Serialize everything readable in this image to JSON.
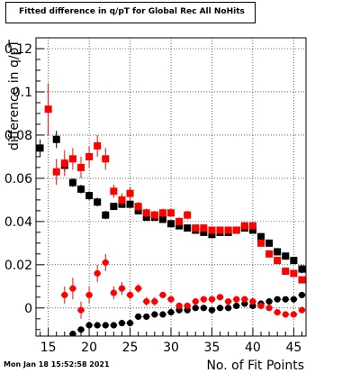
{
  "date_stamp": "Mon Jan 18 15:52:58 2021",
  "chart_data": {
    "type": "scatter",
    "title": "Fitted difference in q/pT for Global Rec All NoHits",
    "xlabel": "No. of Fit Points",
    "ylabel": "difference in q/pT",
    "xlim": [
      13.5,
      46.5
    ],
    "ylim": [
      -0.013,
      0.125
    ],
    "xticks": [
      15,
      20,
      25,
      30,
      35,
      40,
      45
    ],
    "yticks": [
      0,
      0.02,
      0.04,
      0.06,
      0.08,
      0.1,
      0.12
    ],
    "ytick_labels": [
      "0",
      "0.02",
      "0.04",
      "0.06",
      "0.08",
      "0.1",
      "0.12"
    ],
    "grid": true,
    "series": [
      {
        "color": "#000000",
        "marker": "square",
        "x": [
          14,
          16,
          17,
          18,
          19,
          20,
          21,
          22,
          23,
          24,
          25,
          26,
          27,
          28,
          29,
          30,
          31,
          32,
          33,
          34,
          35,
          36,
          37,
          38,
          39,
          40,
          41,
          42,
          43,
          44,
          45,
          46
        ],
        "y": [
          0.074,
          0.078,
          0.066,
          0.058,
          0.055,
          0.052,
          0.049,
          0.043,
          0.047,
          0.048,
          0.048,
          0.045,
          0.042,
          0.042,
          0.041,
          0.039,
          0.038,
          0.037,
          0.036,
          0.035,
          0.034,
          0.035,
          0.035,
          0.036,
          0.037,
          0.036,
          0.033,
          0.03,
          0.026,
          0.024,
          0.022,
          0.018
        ],
        "yerr": [
          0.004,
          0.004,
          0.003,
          0.002,
          0.002,
          0.002,
          0.002,
          0.002,
          0.001,
          0.001,
          0.001,
          0.001,
          0.001,
          0.001,
          0.001,
          0.001,
          0.001,
          0.001,
          0.001,
          0.001,
          0.001,
          0.001,
          0.001,
          0.001,
          0.001,
          0.001,
          0.001,
          0.001,
          0.001,
          0.001,
          0.001,
          0.002
        ]
      },
      {
        "color": "#ff0000",
        "marker": "square",
        "x": [
          15,
          16,
          17,
          18,
          19,
          20,
          21,
          22,
          23,
          24,
          25,
          26,
          27,
          28,
          29,
          30,
          31,
          32,
          33,
          34,
          35,
          36,
          37,
          38,
          39,
          40,
          41,
          42,
          43,
          44,
          45,
          46
        ],
        "y": [
          0.092,
          0.063,
          0.067,
          0.069,
          0.065,
          0.07,
          0.075,
          0.069,
          0.054,
          0.05,
          0.053,
          0.047,
          0.044,
          0.043,
          0.044,
          0.044,
          0.04,
          0.043,
          0.037,
          0.037,
          0.036,
          0.036,
          0.036,
          0.036,
          0.038,
          0.038,
          0.03,
          0.025,
          0.022,
          0.017,
          0.016,
          0.013
        ],
        "yerr": [
          0.012,
          0.006,
          0.006,
          0.005,
          0.005,
          0.005,
          0.005,
          0.005,
          0.003,
          0.003,
          0.003,
          0.002,
          0.002,
          0.002,
          0.002,
          0.002,
          0.002,
          0.002,
          0.001,
          0.001,
          0.001,
          0.001,
          0.001,
          0.001,
          0.001,
          0.001,
          0.001,
          0.001,
          0.001,
          0.001,
          0.001,
          0.001
        ]
      },
      {
        "color": "#000000",
        "marker": "circle",
        "x": [
          18,
          19,
          20,
          21,
          22,
          23,
          24,
          25,
          26,
          27,
          28,
          29,
          30,
          31,
          32,
          33,
          34,
          35,
          36,
          37,
          38,
          39,
          40,
          41,
          42,
          43,
          44,
          45,
          46
        ],
        "y": [
          -0.012,
          -0.01,
          -0.008,
          -0.008,
          -0.008,
          -0.008,
          -0.007,
          -0.007,
          -0.004,
          -0.004,
          -0.003,
          -0.003,
          -0.002,
          -0.001,
          -0.001,
          0.0,
          0.0,
          -0.001,
          0.0,
          0.0,
          0.001,
          0.002,
          0.001,
          0.002,
          0.003,
          0.004,
          0.004,
          0.004,
          0.006
        ],
        "yerr": [
          0.001,
          0.001,
          0.001,
          0.001,
          0.001,
          0.001,
          0.001,
          0.001,
          0.001,
          0.001,
          0.001,
          0.001,
          0.001,
          0.001,
          0.001,
          0.001,
          0.001,
          0.001,
          0.001,
          0.001,
          0.001,
          0.001,
          0.001,
          0.001,
          0.001,
          0.001,
          0.001,
          0.001,
          0.001
        ]
      },
      {
        "color": "#ff0000",
        "marker": "circle",
        "x": [
          17,
          18,
          19,
          20,
          21,
          22,
          23,
          24,
          25,
          26,
          27,
          28,
          29,
          30,
          31,
          32,
          33,
          34,
          35,
          36,
          37,
          38,
          39,
          40,
          41,
          42,
          43,
          44,
          45,
          46
        ],
        "y": [
          0.006,
          0.009,
          -0.001,
          0.006,
          0.016,
          0.021,
          0.007,
          0.009,
          0.006,
          0.009,
          0.003,
          0.003,
          0.006,
          0.004,
          0.001,
          0.001,
          0.003,
          0.004,
          0.004,
          0.005,
          0.003,
          0.004,
          0.004,
          0.003,
          0.001,
          0.0,
          -0.002,
          -0.003,
          -0.003,
          -0.001
        ],
        "yerr": [
          0.004,
          0.005,
          0.004,
          0.004,
          0.004,
          0.004,
          0.003,
          0.003,
          0.002,
          0.002,
          0.002,
          0.002,
          0.001,
          0.001,
          0.001,
          0.001,
          0.001,
          0.001,
          0.001,
          0.001,
          0.001,
          0.001,
          0.001,
          0.001,
          0.001,
          0.001,
          0.001,
          0.001,
          0.001,
          0.001
        ]
      }
    ]
  }
}
